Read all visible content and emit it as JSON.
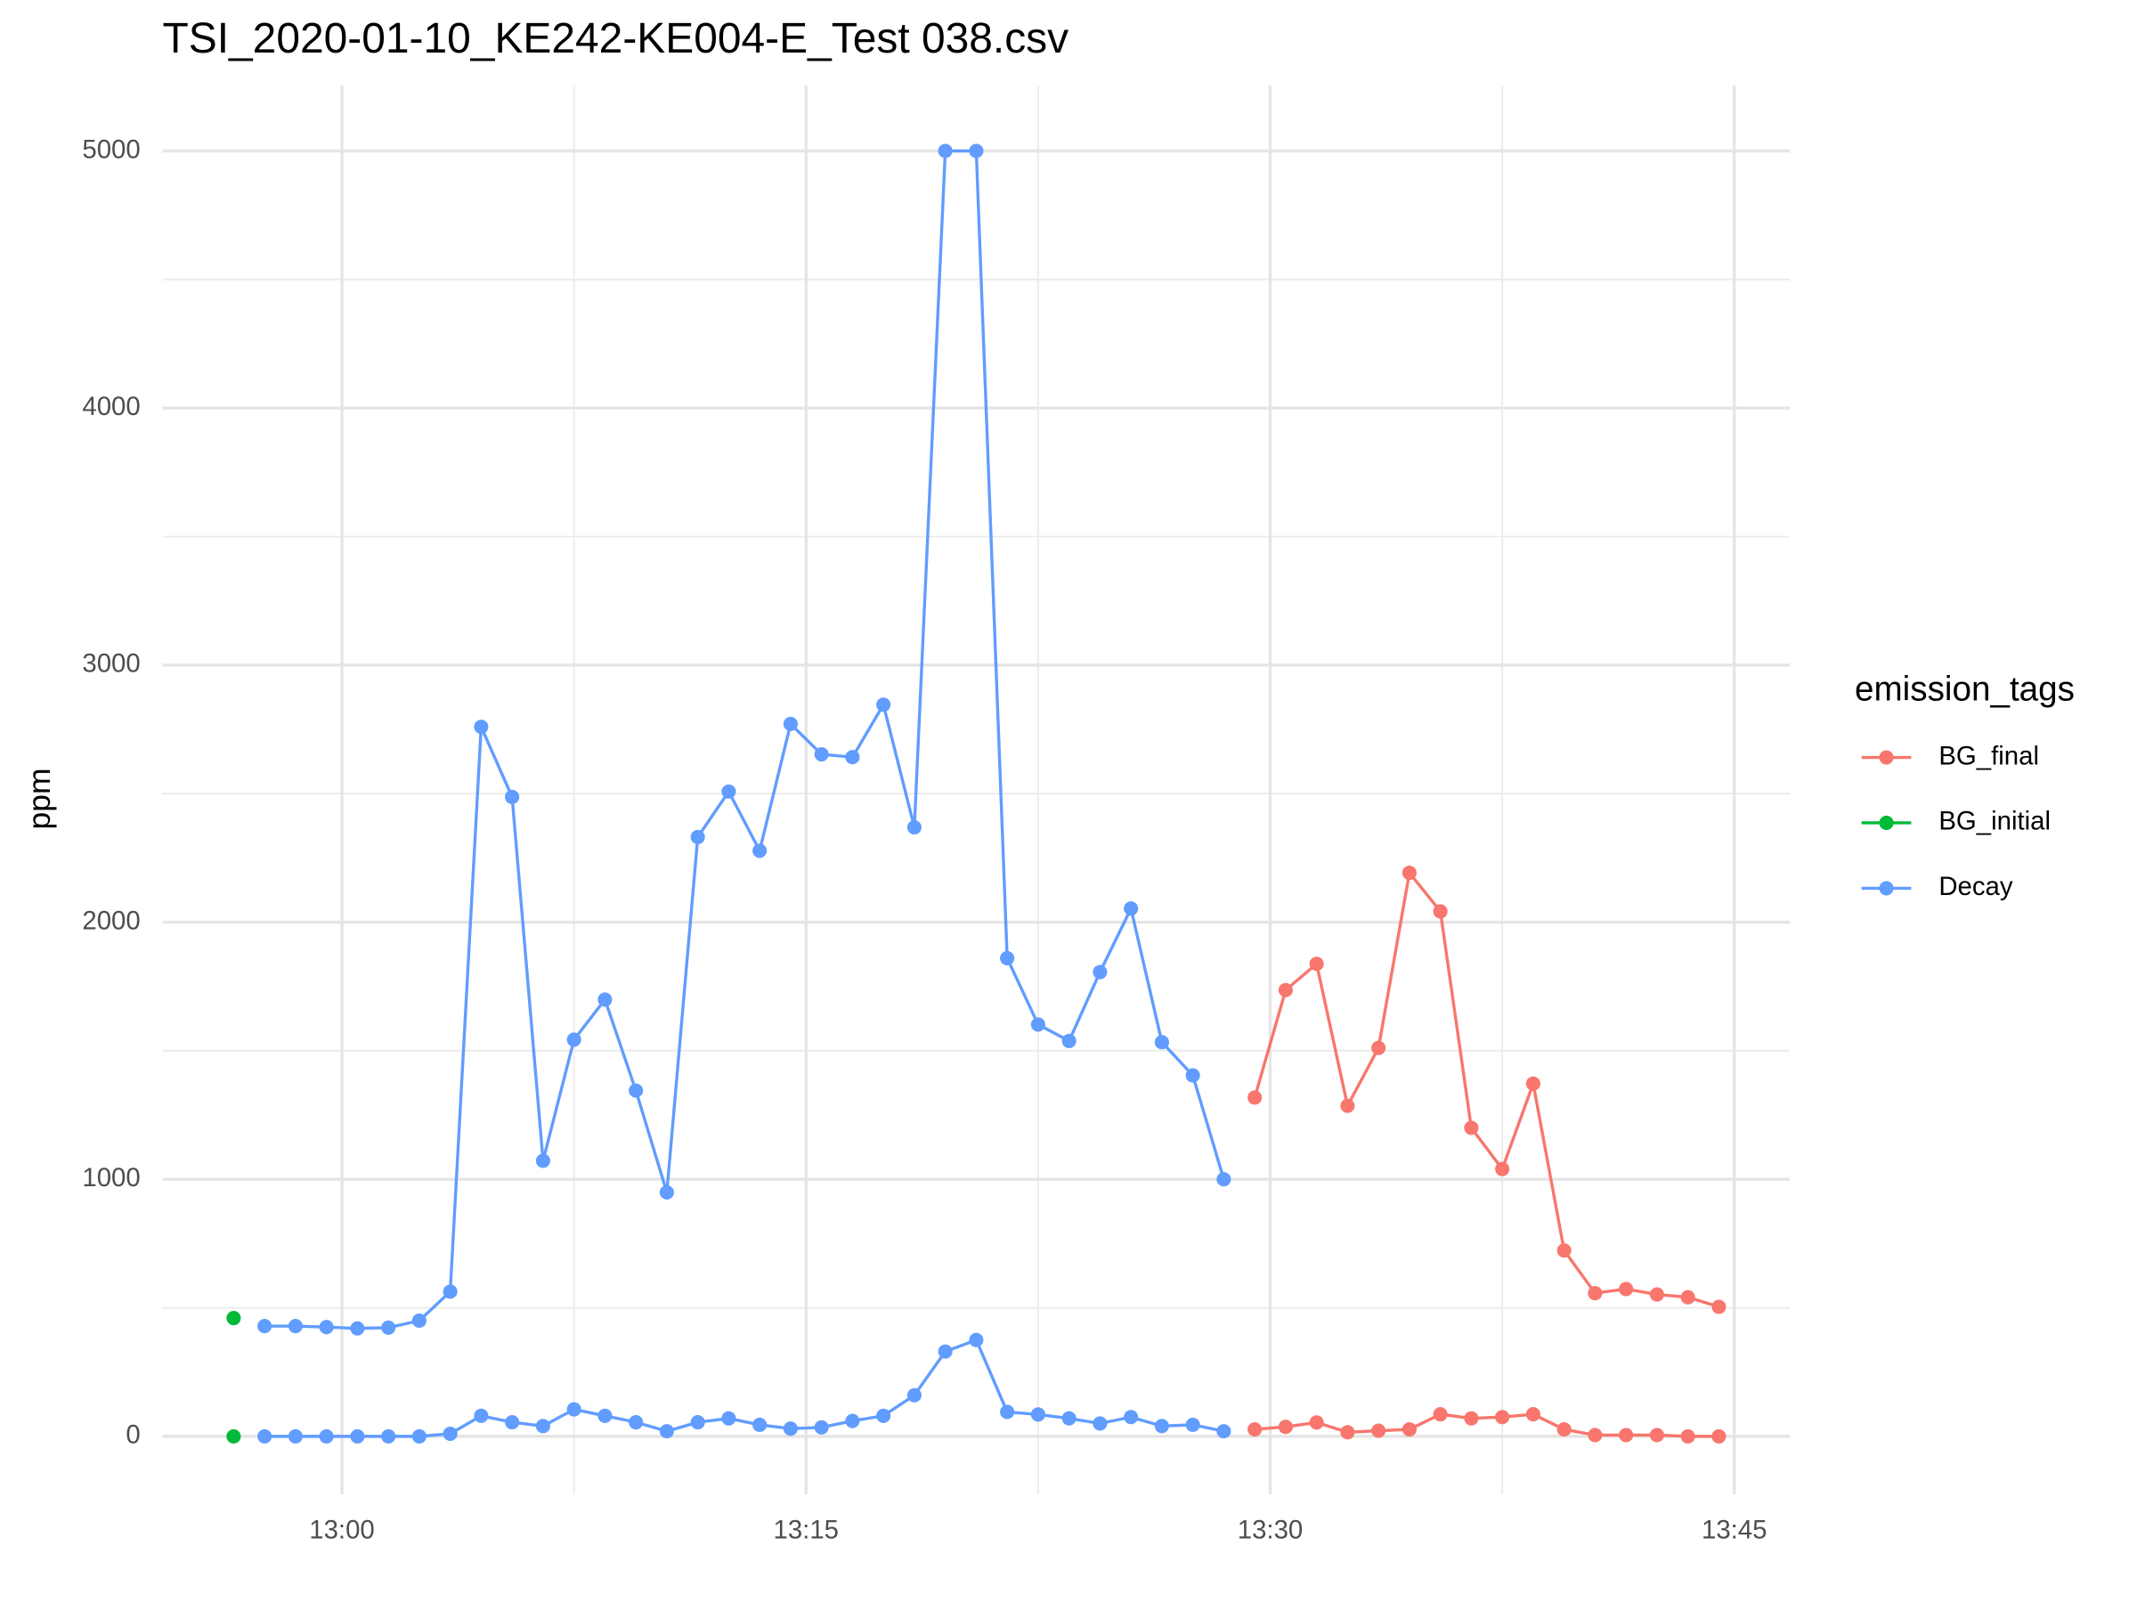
{
  "chart_data": {
    "type": "line",
    "title": "TSI_2020-01-10_KE242-KE004-E_Test 038.csv",
    "y_label": "ppm",
    "legend_title": "emission_tags",
    "legend_position": "right",
    "grid": true,
    "xlim": [
      -5.8,
      46.8
    ],
    "xticks": [
      {
        "value": 0,
        "label": "13:00"
      },
      {
        "value": 15,
        "label": "13:15"
      },
      {
        "value": 30,
        "label": "13:30"
      },
      {
        "value": 45,
        "label": "13:45"
      }
    ],
    "x_minor_ticks": [
      7.5,
      22.5,
      37.5
    ],
    "ylim": [
      -225,
      5255
    ],
    "yticks": [
      0,
      1000,
      2000,
      3000,
      4000,
      5000
    ],
    "y_minor_ticks": [
      500,
      1500,
      2500,
      3500,
      4500
    ],
    "series": [
      {
        "name": "BG_final",
        "color": "#f8766d",
        "x": [
          29.5,
          30.5,
          31.5,
          32.5,
          33.5,
          34.5,
          35.5,
          36.5,
          37.5,
          38.5,
          39.5,
          40.5,
          41.5,
          42.5,
          43.5,
          44.5
        ],
        "lines": [
          [
            1318,
            1736,
            1838,
            1286,
            1511,
            2192,
            2042,
            1200,
            1040,
            1372,
            723,
            557,
            573,
            552,
            541,
            504
          ],
          [
            27,
            37,
            54,
            16,
            22,
            27,
            86,
            70,
            75,
            86,
            27,
            5,
            5,
            5,
            0,
            0
          ]
        ]
      },
      {
        "name": "BG_initial",
        "color": "#00ba38",
        "x": [
          -3.5
        ],
        "lines": [
          [
            460
          ],
          [
            0
          ]
        ]
      },
      {
        "name": "Decay",
        "color": "#619cff",
        "x": [
          -2.5,
          -1.5,
          -0.5,
          0.5,
          1.5,
          2.5,
          3.5,
          4.5,
          5.5,
          6.5,
          7.5,
          8.5,
          9.5,
          10.5,
          11.5,
          12.5,
          13.5,
          14.5,
          15.5,
          16.5,
          17.5,
          18.5,
          19.5,
          20.5,
          21.5,
          22.5,
          23.5,
          24.5,
          25.5,
          26.5,
          27.5,
          28.5
        ],
        "lines": [
          [
            429,
            429,
            425,
            420,
            423,
            450,
            563,
            2760,
            2487,
            1072,
            1543,
            1699,
            1345,
            949,
            2331,
            2508,
            2278,
            2771,
            2653,
            2642,
            2846,
            2369,
            5000,
            5000,
            1860,
            1602,
            1538,
            1806,
            2053,
            1533,
            1404,
            1000
          ],
          [
            0,
            0,
            0,
            0,
            0,
            0,
            10,
            80,
            55,
            40,
            105,
            80,
            55,
            20,
            55,
            70,
            45,
            30,
            35,
            60,
            80,
            160,
            330,
            375,
            95,
            85,
            70,
            50,
            75,
            40,
            45,
            20
          ]
        ]
      }
    ]
  }
}
